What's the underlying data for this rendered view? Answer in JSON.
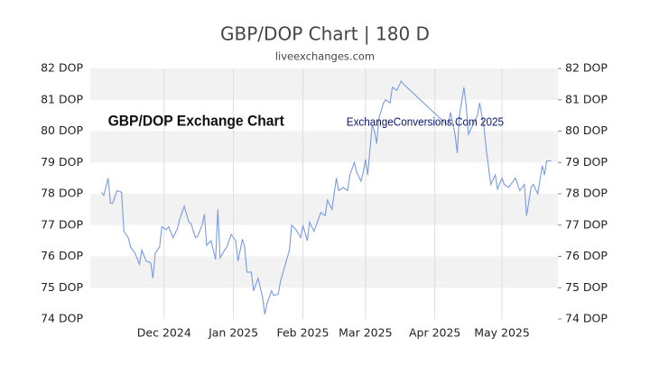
{
  "chart_data": {
    "type": "line",
    "title": "GBP/DOP Chart | 180 D",
    "subtitle": "liveexchanges.com",
    "annotations": [
      "GBP/DOP Exchange Chart",
      "ExchangeConversions.Com 2025"
    ],
    "series": [
      {
        "color": "#7a9be0",
        "x": [
          5,
          6,
          8,
          9,
          10,
          12,
          14,
          15,
          17,
          18,
          20,
          22,
          23,
          25,
          27,
          28,
          29,
          31,
          32,
          34,
          35,
          37,
          39,
          40,
          42,
          44,
          45,
          47,
          48,
          50,
          51,
          52,
          54,
          56,
          57,
          58,
          60,
          61,
          63,
          65,
          66,
          68,
          69,
          70,
          72,
          73,
          75,
          77,
          78,
          79,
          81,
          82,
          84,
          85,
          87,
          89,
          90,
          92,
          94,
          95,
          97,
          98,
          100,
          102,
          103,
          105,
          106,
          108,
          110,
          111,
          113,
          115,
          116,
          118,
          119,
          121,
          122,
          123,
          124,
          126,
          127,
          128,
          129,
          131,
          132,
          134,
          135,
          137,
          139,
          140,
          158,
          160,
          161,
          163,
          164,
          165,
          167,
          168,
          169,
          171,
          173,
          174,
          176,
          177,
          179,
          181,
          182,
          184,
          185,
          187,
          189,
          190,
          192,
          194,
          195,
          197,
          198,
          200,
          202,
          203,
          204,
          206
        ],
        "values": [
          78.05,
          77.95,
          78.5,
          77.7,
          77.7,
          78.1,
          78.05,
          76.8,
          76.6,
          76.3,
          76.1,
          75.75,
          76.2,
          75.85,
          75.8,
          75.3,
          76.1,
          76.3,
          76.95,
          76.85,
          76.95,
          76.6,
          76.9,
          77.2,
          77.6,
          77.1,
          77.05,
          76.6,
          76.65,
          77.0,
          77.35,
          76.35,
          76.5,
          75.9,
          77.5,
          75.95,
          76.2,
          76.3,
          76.7,
          76.5,
          75.85,
          76.55,
          76.3,
          75.5,
          75.5,
          74.9,
          75.3,
          74.7,
          74.15,
          74.5,
          74.9,
          74.75,
          74.8,
          75.2,
          75.7,
          76.2,
          77.0,
          76.85,
          76.6,
          77.0,
          76.5,
          77.1,
          76.8,
          77.2,
          77.4,
          77.3,
          77.8,
          77.5,
          78.5,
          78.1,
          78.2,
          78.1,
          78.6,
          79.0,
          78.7,
          78.4,
          78.7,
          79.1,
          78.6,
          80.2,
          80.0,
          79.6,
          80.4,
          80.9,
          81.0,
          80.9,
          81.4,
          81.3,
          81.6,
          81.5,
          80.3,
          80.2,
          80.6,
          79.9,
          79.3,
          80.5,
          81.4,
          80.8,
          79.9,
          80.2,
          80.5,
          80.9,
          80.1,
          79.4,
          78.3,
          78.6,
          78.15,
          78.5,
          78.3,
          78.2,
          78.4,
          78.5,
          78.1,
          78.3,
          77.3,
          78.2,
          78.3,
          78.0,
          78.9,
          78.6,
          79.05,
          79.05
        ]
      }
    ],
    "xlim": [
      0,
      209
    ],
    "xticks": [
      {
        "value": 33,
        "label": "Dec 2024"
      },
      {
        "value": 64,
        "label": "Jan 2025"
      },
      {
        "value": 95,
        "label": "Feb 2025"
      },
      {
        "value": 123,
        "label": "Mar 2025"
      },
      {
        "value": 154,
        "label": "Apr 2025"
      },
      {
        "value": 184,
        "label": "May 2025"
      }
    ],
    "ylim": [
      74,
      82
    ],
    "yticks": [
      {
        "value": 74,
        "label": "74 DOP"
      },
      {
        "value": 75,
        "label": "75 DOP"
      },
      {
        "value": 76,
        "label": "76 DOP"
      },
      {
        "value": 77,
        "label": "77 DOP"
      },
      {
        "value": 78,
        "label": "78 DOP"
      },
      {
        "value": 79,
        "label": "79 DOP"
      },
      {
        "value": 80,
        "label": "80 DOP"
      },
      {
        "value": 81,
        "label": "81 DOP"
      },
      {
        "value": 82,
        "label": "82 DOP"
      }
    ],
    "y2lim": [
      74,
      82
    ],
    "y2ticks": [
      {
        "value": 74,
        "label": "74 DOP"
      },
      {
        "value": 75,
        "label": "75 DOP"
      },
      {
        "value": 76,
        "label": "76 DOP"
      },
      {
        "value": 77,
        "label": "77 DOP"
      },
      {
        "value": 78,
        "label": "78 DOP"
      },
      {
        "value": 79,
        "label": "79 DOP"
      },
      {
        "value": 80,
        "label": "80 DOP"
      },
      {
        "value": 81,
        "label": "81 DOP"
      },
      {
        "value": 82,
        "label": "82 DOP"
      }
    ],
    "grid": true
  }
}
